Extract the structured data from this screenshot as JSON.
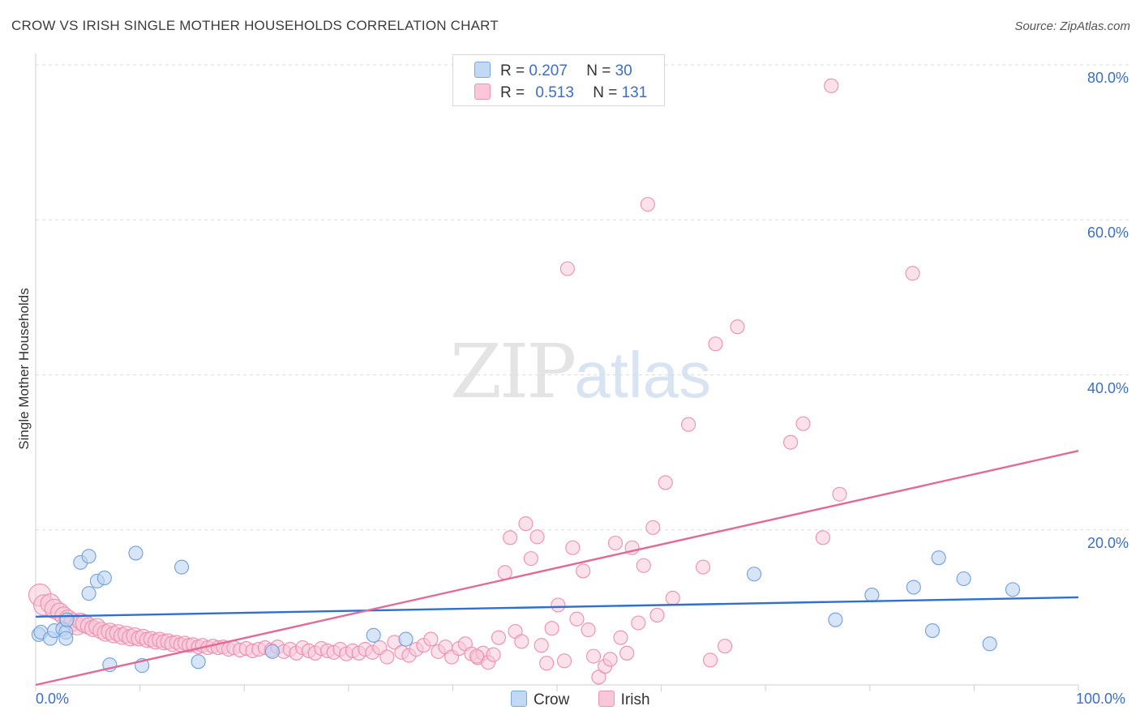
{
  "header": {
    "title": "CROW VS IRISH SINGLE MOTHER HOUSEHOLDS CORRELATION CHART",
    "source": "Source: ZipAtlas.com"
  },
  "watermark": {
    "zip": "ZIP",
    "atlas": "atlas"
  },
  "legend": {
    "rows": [
      {
        "r_label": "R =",
        "r_value": "0.207",
        "n_label": "N =",
        "n_value": "30",
        "color": "#a9c7ef"
      },
      {
        "r_label": "R =",
        "r_value": "0.513",
        "n_label": "N =",
        "n_value": "131",
        "color": "#f5b3c8"
      }
    ]
  },
  "bottom_legend": {
    "crow": "Crow",
    "irish": "Irish"
  },
  "chart_data": {
    "type": "scatter",
    "title": "CROW VS IRISH SINGLE MOTHER HOUSEHOLDS CORRELATION CHART",
    "xlabel": "",
    "ylabel": "Single Mother Households",
    "xlim": [
      0,
      100
    ],
    "ylim": [
      0,
      80
    ],
    "x_tick_labels": [
      "0.0%",
      "100.0%"
    ],
    "y_ticks": [
      20,
      40,
      60,
      80
    ],
    "y_tick_labels": [
      "20.0%",
      "40.0%",
      "60.0%",
      "80.0%"
    ],
    "grid": true,
    "legend_position": "top-center",
    "series": [
      {
        "name": "Crow",
        "color": "#6fa0dc",
        "fill": "#bcd4f2",
        "trend": {
          "x": [
            0,
            100
          ],
          "y": [
            8.8,
            11.3
          ],
          "color": "#2f6fcf"
        },
        "points": [
          [
            0.3,
            6.5
          ],
          [
            0.5,
            6.8
          ],
          [
            1.4,
            6.0
          ],
          [
            1.8,
            7.0
          ],
          [
            2.6,
            7.2
          ],
          [
            2.9,
            6.8
          ],
          [
            3.0,
            8.4
          ],
          [
            2.9,
            6.0
          ],
          [
            4.3,
            15.8
          ],
          [
            5.1,
            16.6
          ],
          [
            5.1,
            11.8
          ],
          [
            5.9,
            13.4
          ],
          [
            6.6,
            13.8
          ],
          [
            7.1,
            2.6
          ],
          [
            9.6,
            17.0
          ],
          [
            10.2,
            2.5
          ],
          [
            14.0,
            15.2
          ],
          [
            15.6,
            3.0
          ],
          [
            22.7,
            4.3
          ],
          [
            32.4,
            6.4
          ],
          [
            35.5,
            5.9
          ],
          [
            68.9,
            14.3
          ],
          [
            76.7,
            8.4
          ],
          [
            80.2,
            11.6
          ],
          [
            84.2,
            12.6
          ],
          [
            86.0,
            7.0
          ],
          [
            86.6,
            16.4
          ],
          [
            89.0,
            13.7
          ],
          [
            91.5,
            5.3
          ],
          [
            93.7,
            12.3
          ]
        ]
      },
      {
        "name": "Irish",
        "color": "#ec8fae",
        "fill": "#f8c8d8",
        "trend": {
          "x": [
            0,
            100
          ],
          "y": [
            0,
            30.2
          ],
          "color": "#e26a95"
        },
        "points": [
          [
            0.4,
            11.6,
            1.6
          ],
          [
            0.8,
            10.3,
            1.5
          ],
          [
            1.4,
            10.5,
            1.4
          ],
          [
            1.8,
            9.8,
            1.4
          ],
          [
            2.3,
            9.4,
            1.3
          ],
          [
            2.7,
            8.9,
            1.3
          ],
          [
            3.1,
            8.5,
            1.3
          ],
          [
            3.6,
            8.1,
            1.3
          ],
          [
            4.0,
            7.6,
            1.3
          ],
          [
            4.3,
            8.2,
            1.2
          ],
          [
            4.7,
            7.9,
            1.3
          ],
          [
            5.1,
            7.6,
            1.2
          ],
          [
            5.5,
            7.3,
            1.2
          ],
          [
            5.9,
            7.5,
            1.2
          ],
          [
            6.3,
            7.0,
            1.2
          ],
          [
            6.7,
            6.7,
            1.2
          ],
          [
            7.1,
            6.9,
            1.2
          ],
          [
            7.5,
            6.5,
            1.2
          ],
          [
            7.9,
            6.7,
            1.2
          ],
          [
            8.3,
            6.3,
            1.2
          ],
          [
            8.7,
            6.5,
            1.2
          ],
          [
            9.1,
            6.1,
            1.2
          ],
          [
            9.5,
            6.3,
            1.2
          ],
          [
            9.9,
            6.0,
            1.1
          ],
          [
            10.3,
            6.2,
            1.1
          ],
          [
            10.7,
            5.8,
            1.1
          ],
          [
            11.1,
            5.9,
            1.1
          ],
          [
            11.5,
            5.6,
            1.1
          ],
          [
            11.9,
            5.8,
            1.1
          ],
          [
            12.3,
            5.5,
            1.1
          ],
          [
            12.7,
            5.6,
            1.1
          ],
          [
            13.1,
            5.3,
            1.1
          ],
          [
            13.5,
            5.5,
            1.0
          ],
          [
            13.9,
            5.2,
            1.0
          ],
          [
            14.3,
            5.4,
            1.0
          ],
          [
            14.7,
            5.1,
            1.0
          ],
          [
            15.1,
            5.2,
            1.0
          ],
          [
            15.6,
            4.9,
            1.0
          ],
          [
            16.0,
            5.1,
            1.0
          ],
          [
            16.5,
            4.8,
            1.0
          ],
          [
            17.0,
            5.0,
            1.0
          ],
          [
            17.5,
            4.8,
            1.0
          ],
          [
            18.0,
            4.9,
            1.0
          ],
          [
            18.5,
            4.6,
            1.0
          ],
          [
            19.0,
            4.8,
            1.0
          ],
          [
            19.6,
            4.5,
            1.0
          ],
          [
            20.2,
            4.7,
            1.0
          ],
          [
            20.8,
            4.4,
            1.0
          ],
          [
            21.4,
            4.6,
            1.0
          ],
          [
            22.0,
            4.8,
            1.0
          ],
          [
            22.6,
            4.5,
            1.0
          ],
          [
            23.2,
            4.9,
            1.0
          ],
          [
            23.8,
            4.3,
            1.0
          ],
          [
            24.4,
            4.6,
            1.0
          ],
          [
            25.0,
            4.1,
            1.0
          ],
          [
            25.6,
            4.8,
            1.0
          ],
          [
            26.2,
            4.4,
            1.0
          ],
          [
            26.8,
            4.1,
            1.0
          ],
          [
            27.4,
            4.7,
            1.0
          ],
          [
            28.0,
            4.4,
            1.0
          ],
          [
            28.6,
            4.2,
            1.0
          ],
          [
            29.2,
            4.6,
            1.0
          ],
          [
            29.8,
            4.0,
            1.0
          ],
          [
            30.4,
            4.4,
            1.0
          ],
          [
            31.0,
            4.1,
            1.0
          ],
          [
            31.6,
            4.6,
            1.0
          ],
          [
            32.3,
            4.2,
            1.0
          ],
          [
            33.0,
            4.8,
            1.0
          ],
          [
            33.7,
            3.6,
            1.0
          ],
          [
            34.4,
            5.5,
            1.0
          ],
          [
            35.1,
            4.2,
            1.0
          ],
          [
            35.8,
            3.8,
            1.0
          ],
          [
            36.5,
            4.6,
            1.0
          ],
          [
            37.2,
            5.1,
            1.0
          ],
          [
            37.9,
            5.9,
            1.0
          ],
          [
            38.6,
            4.3,
            1.0
          ],
          [
            39.3,
            4.9,
            1.0
          ],
          [
            39.9,
            3.6,
            1.0
          ],
          [
            40.6,
            4.7,
            1.0
          ],
          [
            41.2,
            5.3,
            1.0
          ],
          [
            41.8,
            4.0,
            1.0
          ],
          [
            42.4,
            3.5,
            1.0
          ],
          [
            42.9,
            4.1,
            1.0
          ],
          [
            43.4,
            2.9,
            1.0
          ],
          [
            43.9,
            3.9,
            1.0
          ],
          [
            44.4,
            6.1,
            1.0
          ],
          [
            45.0,
            14.5,
            1.0
          ],
          [
            45.5,
            19.0,
            1.0
          ],
          [
            46.0,
            6.9,
            1.0
          ],
          [
            46.6,
            5.6,
            1.0
          ],
          [
            47.0,
            20.8,
            1.0
          ],
          [
            47.5,
            16.3,
            1.0
          ],
          [
            48.1,
            19.1,
            1.0
          ],
          [
            48.5,
            5.1,
            1.0
          ],
          [
            49.0,
            2.8,
            1.0
          ],
          [
            49.5,
            7.3,
            1.0
          ],
          [
            50.1,
            10.3,
            1.0
          ],
          [
            50.7,
            3.1,
            1.0
          ],
          [
            51.0,
            53.7,
            1.0
          ],
          [
            51.5,
            17.7,
            1.0
          ],
          [
            52.5,
            14.7,
            1.0
          ],
          [
            51.9,
            8.5,
            1.0
          ],
          [
            53.0,
            7.1,
            1.0
          ],
          [
            53.5,
            3.7,
            1.0
          ],
          [
            54.0,
            1.0,
            1.0
          ],
          [
            54.6,
            2.4,
            1.0
          ],
          [
            55.1,
            3.3,
            1.0
          ],
          [
            55.6,
            18.3,
            1.0
          ],
          [
            56.1,
            6.1,
            1.0
          ],
          [
            56.7,
            4.1,
            1.0
          ],
          [
            57.2,
            17.7,
            1.0
          ],
          [
            57.8,
            8.0,
            1.0
          ],
          [
            58.3,
            15.4,
            1.0
          ],
          [
            58.7,
            62.0,
            1.0
          ],
          [
            59.2,
            20.3,
            1.0
          ],
          [
            59.6,
            9.0,
            1.0
          ],
          [
            60.4,
            26.1,
            1.0
          ],
          [
            61.1,
            11.2,
            1.0
          ],
          [
            62.6,
            33.6,
            1.0
          ],
          [
            64.0,
            15.2,
            1.0
          ],
          [
            64.7,
            3.2,
            1.0
          ],
          [
            65.2,
            44.0,
            1.0
          ],
          [
            66.1,
            5.0,
            1.0
          ],
          [
            67.3,
            46.2,
            1.0
          ],
          [
            72.4,
            31.3,
            1.0
          ],
          [
            73.6,
            33.7,
            1.0
          ],
          [
            75.5,
            19.0,
            1.0
          ],
          [
            76.3,
            77.3,
            1.0
          ],
          [
            77.1,
            24.6,
            1.0
          ],
          [
            84.1,
            53.1,
            1.0
          ],
          [
            42.3,
            3.7,
            1.0
          ]
        ]
      }
    ]
  }
}
